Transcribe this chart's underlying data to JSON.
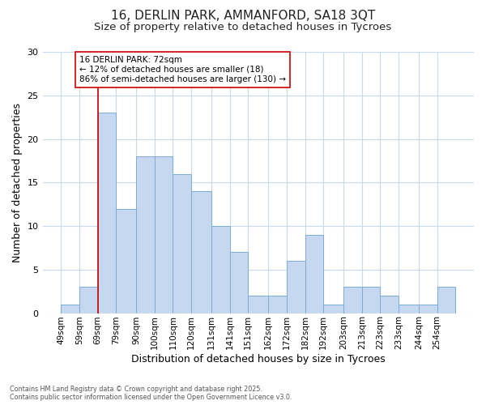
{
  "title1": "16, DERLIN PARK, AMMANFORD, SA18 3QT",
  "title2": "Size of property relative to detached houses in Tycroes",
  "xlabel": "Distribution of detached houses by size in Tycroes",
  "ylabel": "Number of detached properties",
  "tick_labels": [
    "49sqm",
    "59sqm",
    "69sqm",
    "79sqm",
    "90sqm",
    "100sqm",
    "110sqm",
    "120sqm",
    "131sqm",
    "141sqm",
    "151sqm",
    "162sqm",
    "172sqm",
    "182sqm",
    "192sqm",
    "203sqm",
    "213sqm",
    "223sqm",
    "233sqm",
    "244sqm",
    "254sqm"
  ],
  "left_edges": [
    49,
    59,
    69,
    79,
    90,
    100,
    110,
    120,
    131,
    141,
    151,
    162,
    172,
    182,
    192,
    203,
    213,
    223,
    233,
    244,
    254
  ],
  "right_edges": [
    59,
    69,
    79,
    90,
    100,
    110,
    120,
    131,
    141,
    151,
    162,
    172,
    182,
    192,
    203,
    213,
    223,
    233,
    244,
    254,
    264
  ],
  "bar_vals": [
    1,
    3,
    23,
    12,
    18,
    18,
    16,
    14,
    10,
    7,
    2,
    2,
    6,
    9,
    1,
    3,
    3,
    2,
    1,
    1,
    3
  ],
  "bar_color": "#c5d8ef",
  "bar_edge_color": "#7badd4",
  "vline_x": 69,
  "vline_color": "#cc0000",
  "annotation_text": "16 DERLIN PARK: 72sqm\n← 12% of detached houses are smaller (18)\n86% of semi-detached houses are larger (130) →",
  "ylim": [
    0,
    30
  ],
  "yticks": [
    0,
    5,
    10,
    15,
    20,
    25,
    30
  ],
  "background_color": "#ffffff",
  "plot_bg_color": "#ffffff",
  "grid_color": "#c8d8ee",
  "footer_text": "Contains HM Land Registry data © Crown copyright and database right 2025.\nContains public sector information licensed under the Open Government Licence v3.0.",
  "title_fontsize": 11,
  "subtitle_fontsize": 9.5,
  "axis_label_fontsize": 9,
  "tick_fontsize": 7.5,
  "xlim_left": 39,
  "xlim_right": 274
}
